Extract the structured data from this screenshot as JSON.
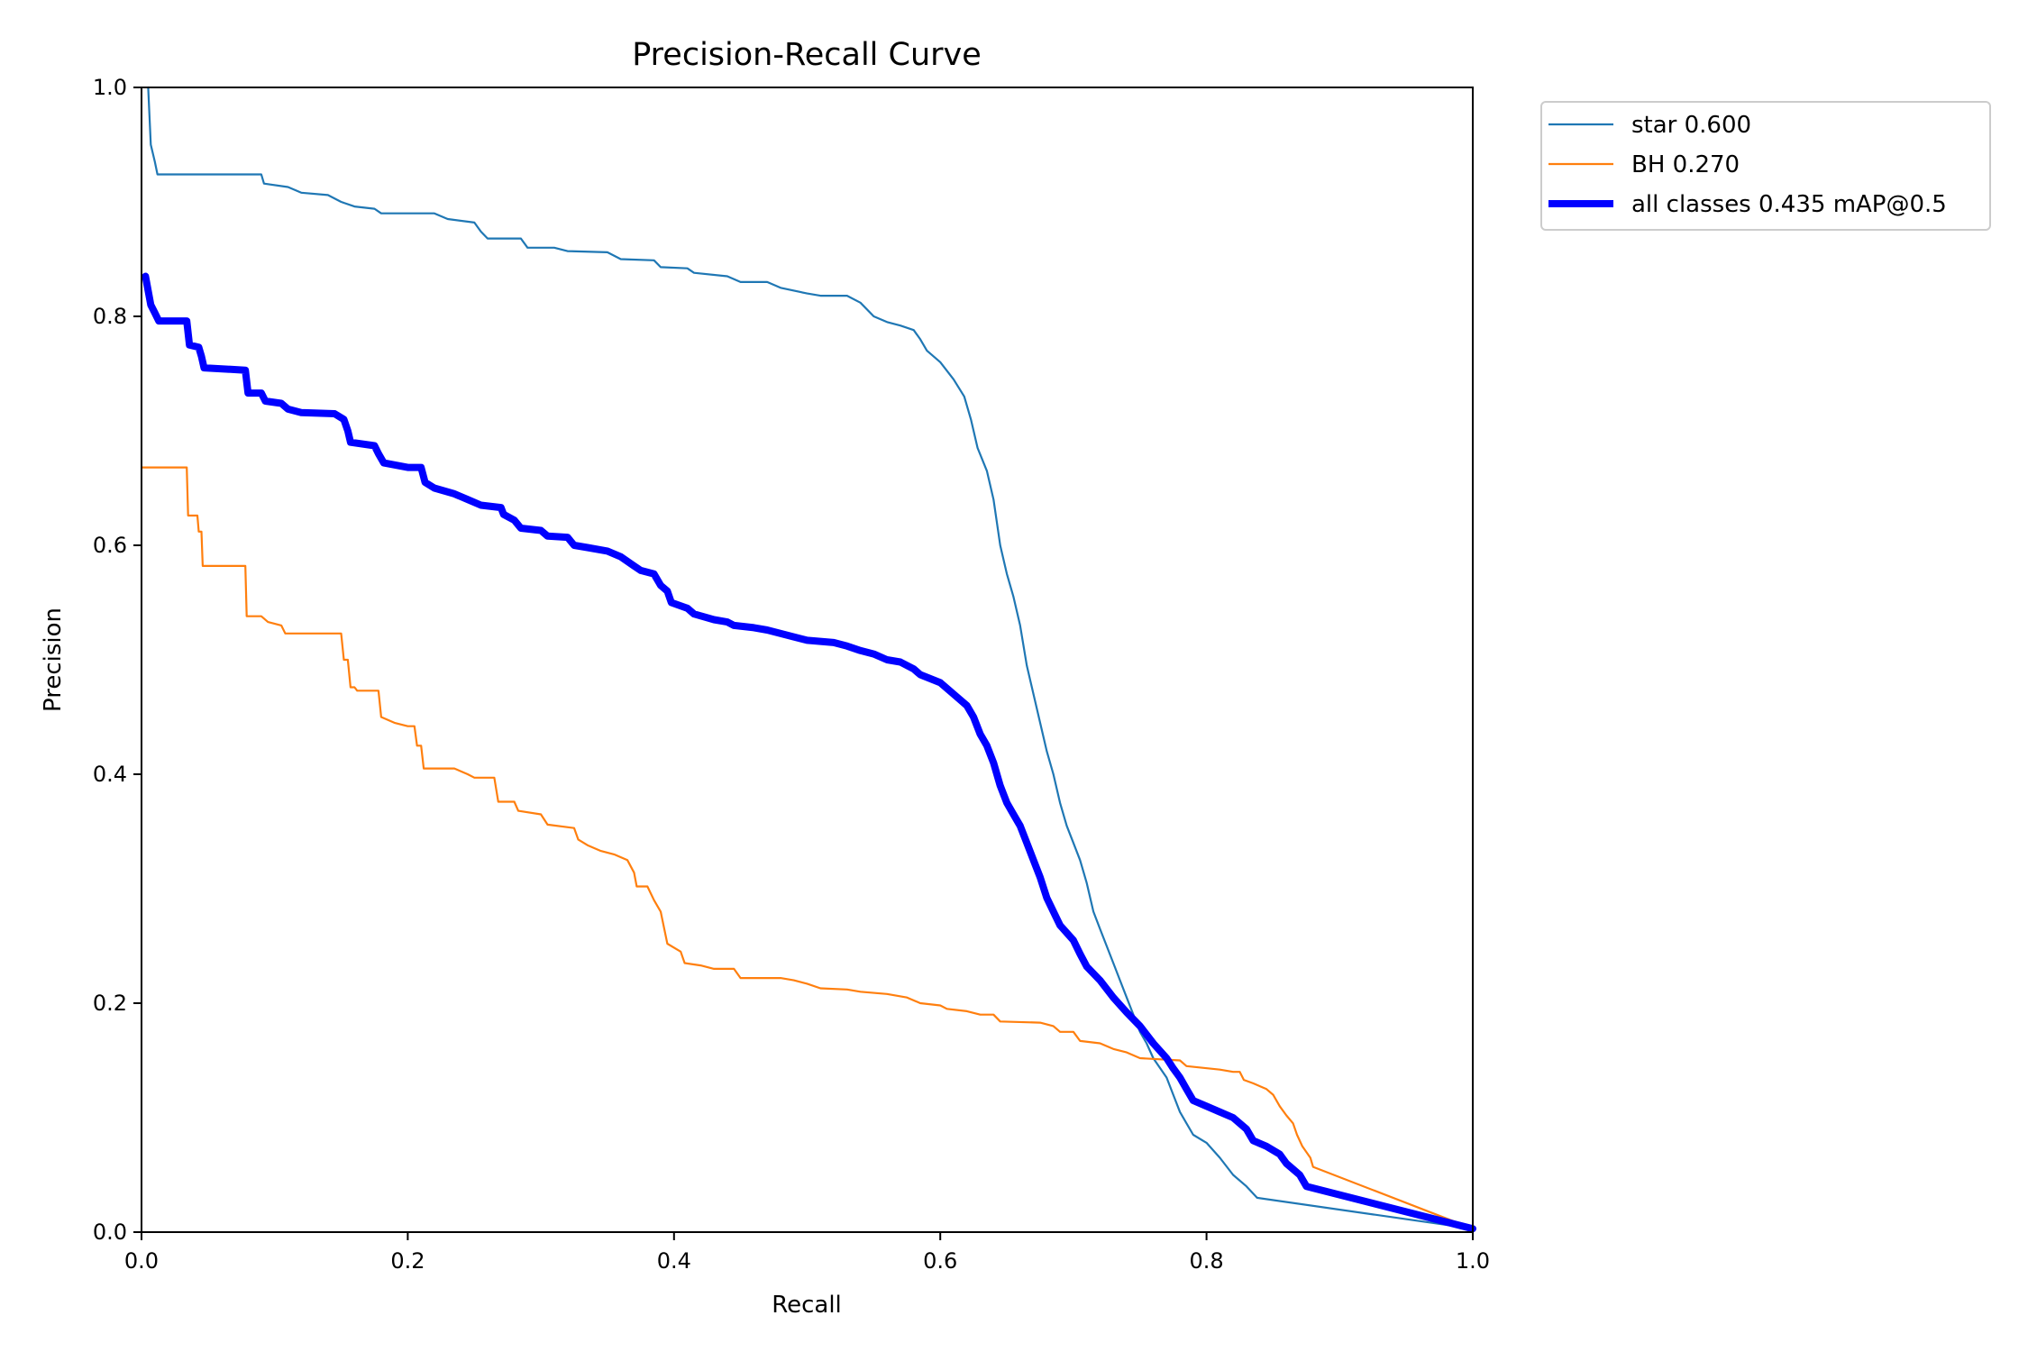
{
  "chart_data": {
    "type": "line",
    "title": "Precision-Recall Curve",
    "xlabel": "Recall",
    "ylabel": "Precision",
    "xlim": [
      0,
      1
    ],
    "ylim": [
      0,
      1
    ],
    "xticks": [
      "0.0",
      "0.2",
      "0.4",
      "0.6",
      "0.8",
      "1.0"
    ],
    "yticks": [
      "0.0",
      "0.2",
      "0.4",
      "0.6",
      "0.8",
      "1.0"
    ],
    "grid": false,
    "legend_position": "outside-top-right",
    "series": [
      {
        "name": "star 0.600",
        "color": "#1f77b4",
        "points": [
          [
            0.005,
            1.0
          ],
          [
            0.007,
            0.95
          ],
          [
            0.01,
            0.935
          ],
          [
            0.012,
            0.924
          ],
          [
            0.09,
            0.924
          ],
          [
            0.092,
            0.916
          ],
          [
            0.11,
            0.913
          ],
          [
            0.12,
            0.908
          ],
          [
            0.14,
            0.906
          ],
          [
            0.15,
            0.9
          ],
          [
            0.16,
            0.896
          ],
          [
            0.175,
            0.894
          ],
          [
            0.18,
            0.89
          ],
          [
            0.22,
            0.89
          ],
          [
            0.23,
            0.885
          ],
          [
            0.25,
            0.882
          ],
          [
            0.255,
            0.874
          ],
          [
            0.26,
            0.868
          ],
          [
            0.285,
            0.868
          ],
          [
            0.29,
            0.86
          ],
          [
            0.31,
            0.86
          ],
          [
            0.32,
            0.857
          ],
          [
            0.35,
            0.856
          ],
          [
            0.36,
            0.85
          ],
          [
            0.385,
            0.849
          ],
          [
            0.39,
            0.843
          ],
          [
            0.41,
            0.842
          ],
          [
            0.415,
            0.838
          ],
          [
            0.44,
            0.835
          ],
          [
            0.45,
            0.83
          ],
          [
            0.47,
            0.83
          ],
          [
            0.48,
            0.825
          ],
          [
            0.5,
            0.82
          ],
          [
            0.51,
            0.818
          ],
          [
            0.53,
            0.818
          ],
          [
            0.54,
            0.812
          ],
          [
            0.55,
            0.8
          ],
          [
            0.56,
            0.795
          ],
          [
            0.57,
            0.792
          ],
          [
            0.58,
            0.788
          ],
          [
            0.585,
            0.78
          ],
          [
            0.59,
            0.77
          ],
          [
            0.6,
            0.76
          ],
          [
            0.61,
            0.745
          ],
          [
            0.618,
            0.73
          ],
          [
            0.623,
            0.71
          ],
          [
            0.628,
            0.685
          ],
          [
            0.635,
            0.665
          ],
          [
            0.64,
            0.64
          ],
          [
            0.645,
            0.6
          ],
          [
            0.65,
            0.575
          ],
          [
            0.655,
            0.555
          ],
          [
            0.66,
            0.53
          ],
          [
            0.665,
            0.495
          ],
          [
            0.67,
            0.47
          ],
          [
            0.675,
            0.445
          ],
          [
            0.68,
            0.42
          ],
          [
            0.685,
            0.4
          ],
          [
            0.69,
            0.375
          ],
          [
            0.695,
            0.355
          ],
          [
            0.7,
            0.34
          ],
          [
            0.705,
            0.325
          ],
          [
            0.71,
            0.305
          ],
          [
            0.715,
            0.28
          ],
          [
            0.72,
            0.265
          ],
          [
            0.725,
            0.25
          ],
          [
            0.73,
            0.235
          ],
          [
            0.735,
            0.22
          ],
          [
            0.74,
            0.205
          ],
          [
            0.745,
            0.19
          ],
          [
            0.75,
            0.175
          ],
          [
            0.755,
            0.165
          ],
          [
            0.76,
            0.152
          ],
          [
            0.77,
            0.135
          ],
          [
            0.775,
            0.12
          ],
          [
            0.78,
            0.105
          ],
          [
            0.785,
            0.095
          ],
          [
            0.79,
            0.085
          ],
          [
            0.8,
            0.078
          ],
          [
            0.81,
            0.065
          ],
          [
            0.82,
            0.05
          ],
          [
            0.83,
            0.04
          ],
          [
            0.838,
            0.03
          ],
          [
            1.0,
            0.003
          ]
        ]
      },
      {
        "name": "BH 0.270",
        "color": "#ff7f0e",
        "points": [
          [
            0.0,
            0.668
          ],
          [
            0.034,
            0.668
          ],
          [
            0.035,
            0.626
          ],
          [
            0.042,
            0.626
          ],
          [
            0.043,
            0.612
          ],
          [
            0.045,
            0.612
          ],
          [
            0.046,
            0.582
          ],
          [
            0.078,
            0.582
          ],
          [
            0.079,
            0.538
          ],
          [
            0.09,
            0.538
          ],
          [
            0.095,
            0.533
          ],
          [
            0.105,
            0.53
          ],
          [
            0.108,
            0.523
          ],
          [
            0.15,
            0.523
          ],
          [
            0.152,
            0.5
          ],
          [
            0.155,
            0.5
          ],
          [
            0.157,
            0.476
          ],
          [
            0.16,
            0.476
          ],
          [
            0.162,
            0.473
          ],
          [
            0.178,
            0.473
          ],
          [
            0.18,
            0.45
          ],
          [
            0.19,
            0.445
          ],
          [
            0.2,
            0.442
          ],
          [
            0.205,
            0.442
          ],
          [
            0.207,
            0.425
          ],
          [
            0.21,
            0.425
          ],
          [
            0.212,
            0.405
          ],
          [
            0.235,
            0.405
          ],
          [
            0.245,
            0.4
          ],
          [
            0.25,
            0.397
          ],
          [
            0.265,
            0.397
          ],
          [
            0.268,
            0.376
          ],
          [
            0.28,
            0.376
          ],
          [
            0.283,
            0.368
          ],
          [
            0.3,
            0.365
          ],
          [
            0.305,
            0.356
          ],
          [
            0.325,
            0.353
          ],
          [
            0.328,
            0.343
          ],
          [
            0.335,
            0.338
          ],
          [
            0.345,
            0.333
          ],
          [
            0.355,
            0.33
          ],
          [
            0.365,
            0.325
          ],
          [
            0.37,
            0.314
          ],
          [
            0.372,
            0.302
          ],
          [
            0.38,
            0.302
          ],
          [
            0.385,
            0.29
          ],
          [
            0.39,
            0.28
          ],
          [
            0.395,
            0.252
          ],
          [
            0.405,
            0.245
          ],
          [
            0.408,
            0.235
          ],
          [
            0.42,
            0.233
          ],
          [
            0.43,
            0.23
          ],
          [
            0.445,
            0.23
          ],
          [
            0.45,
            0.222
          ],
          [
            0.48,
            0.222
          ],
          [
            0.49,
            0.22
          ],
          [
            0.5,
            0.217
          ],
          [
            0.51,
            0.213
          ],
          [
            0.53,
            0.212
          ],
          [
            0.54,
            0.21
          ],
          [
            0.56,
            0.208
          ],
          [
            0.575,
            0.205
          ],
          [
            0.585,
            0.2
          ],
          [
            0.6,
            0.198
          ],
          [
            0.605,
            0.195
          ],
          [
            0.62,
            0.193
          ],
          [
            0.63,
            0.19
          ],
          [
            0.64,
            0.19
          ],
          [
            0.645,
            0.184
          ],
          [
            0.675,
            0.183
          ],
          [
            0.685,
            0.18
          ],
          [
            0.69,
            0.175
          ],
          [
            0.7,
            0.175
          ],
          [
            0.705,
            0.167
          ],
          [
            0.72,
            0.165
          ],
          [
            0.73,
            0.16
          ],
          [
            0.74,
            0.157
          ],
          [
            0.75,
            0.152
          ],
          [
            0.78,
            0.15
          ],
          [
            0.785,
            0.145
          ],
          [
            0.81,
            0.142
          ],
          [
            0.82,
            0.14
          ],
          [
            0.825,
            0.14
          ],
          [
            0.828,
            0.133
          ],
          [
            0.835,
            0.13
          ],
          [
            0.845,
            0.125
          ],
          [
            0.85,
            0.12
          ],
          [
            0.855,
            0.11
          ],
          [
            0.86,
            0.102
          ],
          [
            0.865,
            0.095
          ],
          [
            0.868,
            0.085
          ],
          [
            0.872,
            0.075
          ],
          [
            0.878,
            0.065
          ],
          [
            0.88,
            0.057
          ],
          [
            1.0,
            0.003
          ]
        ]
      },
      {
        "name": "all classes 0.435 mAP@0.5",
        "color": "#0000ff",
        "bold": true,
        "points": [
          [
            0.003,
            0.835
          ],
          [
            0.007,
            0.81
          ],
          [
            0.01,
            0.803
          ],
          [
            0.013,
            0.796
          ],
          [
            0.034,
            0.796
          ],
          [
            0.036,
            0.775
          ],
          [
            0.043,
            0.773
          ],
          [
            0.045,
            0.765
          ],
          [
            0.047,
            0.755
          ],
          [
            0.078,
            0.753
          ],
          [
            0.08,
            0.733
          ],
          [
            0.09,
            0.733
          ],
          [
            0.093,
            0.726
          ],
          [
            0.105,
            0.724
          ],
          [
            0.11,
            0.719
          ],
          [
            0.12,
            0.716
          ],
          [
            0.145,
            0.715
          ],
          [
            0.152,
            0.71
          ],
          [
            0.155,
            0.7
          ],
          [
            0.157,
            0.69
          ],
          [
            0.175,
            0.687
          ],
          [
            0.178,
            0.68
          ],
          [
            0.182,
            0.672
          ],
          [
            0.2,
            0.668
          ],
          [
            0.21,
            0.668
          ],
          [
            0.213,
            0.655
          ],
          [
            0.22,
            0.65
          ],
          [
            0.235,
            0.645
          ],
          [
            0.245,
            0.64
          ],
          [
            0.255,
            0.635
          ],
          [
            0.27,
            0.633
          ],
          [
            0.272,
            0.627
          ],
          [
            0.28,
            0.622
          ],
          [
            0.285,
            0.615
          ],
          [
            0.3,
            0.613
          ],
          [
            0.305,
            0.608
          ],
          [
            0.32,
            0.607
          ],
          [
            0.325,
            0.6
          ],
          [
            0.335,
            0.598
          ],
          [
            0.35,
            0.595
          ],
          [
            0.36,
            0.59
          ],
          [
            0.37,
            0.582
          ],
          [
            0.375,
            0.578
          ],
          [
            0.385,
            0.575
          ],
          [
            0.39,
            0.565
          ],
          [
            0.395,
            0.56
          ],
          [
            0.398,
            0.55
          ],
          [
            0.41,
            0.545
          ],
          [
            0.415,
            0.54
          ],
          [
            0.43,
            0.535
          ],
          [
            0.44,
            0.533
          ],
          [
            0.445,
            0.53
          ],
          [
            0.46,
            0.528
          ],
          [
            0.47,
            0.526
          ],
          [
            0.49,
            0.52
          ],
          [
            0.5,
            0.517
          ],
          [
            0.52,
            0.515
          ],
          [
            0.53,
            0.512
          ],
          [
            0.54,
            0.508
          ],
          [
            0.55,
            0.505
          ],
          [
            0.56,
            0.5
          ],
          [
            0.57,
            0.498
          ],
          [
            0.58,
            0.492
          ],
          [
            0.585,
            0.487
          ],
          [
            0.6,
            0.48
          ],
          [
            0.61,
            0.47
          ],
          [
            0.62,
            0.46
          ],
          [
            0.625,
            0.45
          ],
          [
            0.63,
            0.435
          ],
          [
            0.635,
            0.425
          ],
          [
            0.64,
            0.41
          ],
          [
            0.645,
            0.39
          ],
          [
            0.65,
            0.375
          ],
          [
            0.655,
            0.365
          ],
          [
            0.66,
            0.355
          ],
          [
            0.665,
            0.34
          ],
          [
            0.67,
            0.325
          ],
          [
            0.675,
            0.31
          ],
          [
            0.68,
            0.292
          ],
          [
            0.685,
            0.28
          ],
          [
            0.69,
            0.268
          ],
          [
            0.7,
            0.255
          ],
          [
            0.705,
            0.243
          ],
          [
            0.71,
            0.232
          ],
          [
            0.72,
            0.22
          ],
          [
            0.73,
            0.205
          ],
          [
            0.74,
            0.192
          ],
          [
            0.75,
            0.18
          ],
          [
            0.76,
            0.165
          ],
          [
            0.77,
            0.152
          ],
          [
            0.775,
            0.143
          ],
          [
            0.78,
            0.135
          ],
          [
            0.785,
            0.125
          ],
          [
            0.79,
            0.115
          ],
          [
            0.8,
            0.11
          ],
          [
            0.81,
            0.105
          ],
          [
            0.82,
            0.1
          ],
          [
            0.83,
            0.09
          ],
          [
            0.835,
            0.08
          ],
          [
            0.845,
            0.075
          ],
          [
            0.855,
            0.068
          ],
          [
            0.86,
            0.06
          ],
          [
            0.87,
            0.05
          ],
          [
            0.875,
            0.04
          ],
          [
            0.885,
            0.037
          ],
          [
            1.0,
            0.003
          ]
        ]
      }
    ]
  }
}
